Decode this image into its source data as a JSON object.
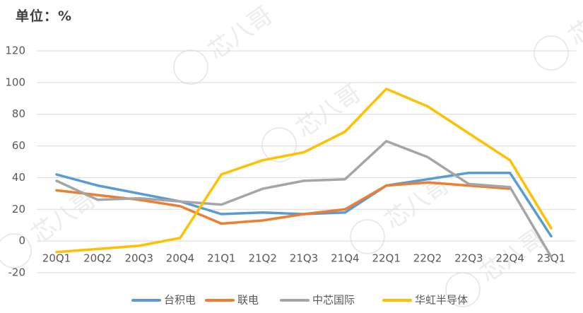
{
  "unit_label": "单位：%",
  "watermark_text": "芯八哥",
  "chart_data": {
    "type": "line",
    "title": "",
    "xlabel": "",
    "ylabel": "单位：%",
    "categories": [
      "20Q1",
      "20Q2",
      "20Q3",
      "20Q4",
      "21Q1",
      "21Q2",
      "21Q3",
      "21Q4",
      "22Q1",
      "22Q2",
      "22Q3",
      "22Q4",
      "23Q1"
    ],
    "ylim": [
      -20,
      120
    ],
    "yticks": [
      -20,
      0,
      20,
      40,
      60,
      80,
      100,
      120
    ],
    "grid": true,
    "legend_position": "bottom",
    "series": [
      {
        "name": "台积电",
        "color": "#5B9BD5",
        "values": [
          42,
          35,
          30,
          25,
          17,
          18,
          17,
          18,
          35,
          39,
          43,
          43,
          3
        ]
      },
      {
        "name": "联电",
        "color": "#ED7D31",
        "values": [
          32,
          29,
          26,
          22,
          11,
          13,
          17,
          20,
          35,
          37,
          35,
          33,
          null
        ]
      },
      {
        "name": "中芯国际",
        "color": "#A5A5A5",
        "values": [
          38,
          26,
          27,
          25,
          23,
          33,
          38,
          39,
          63,
          53,
          36,
          34,
          -10
        ]
      },
      {
        "name": "华虹半导体",
        "color": "#FFC000",
        "values": [
          -7,
          -5,
          -3,
          2,
          42,
          51,
          56,
          69,
          96,
          85,
          68,
          51,
          8
        ]
      }
    ]
  }
}
